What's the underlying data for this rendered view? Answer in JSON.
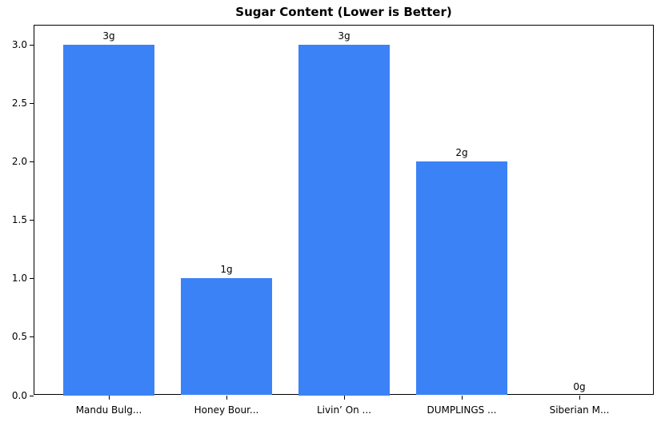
{
  "chart_data": {
    "type": "bar",
    "title": "Sugar Content (Lower is Better)",
    "categories": [
      "Mandu Bulg...",
      "Honey Bour...",
      "Livin’ On ...",
      "DUMPLINGS ...",
      "Siberian M..."
    ],
    "values": [
      3,
      1,
      3,
      2,
      0
    ],
    "bar_labels": [
      "3g",
      "1g",
      "3g",
      "2g",
      "0g"
    ],
    "ytick_values": [
      0.0,
      0.5,
      1.0,
      1.5,
      2.0,
      2.5,
      3.0
    ],
    "ytick_labels": [
      "0.0",
      "0.5",
      "1.0",
      "1.5",
      "2.0",
      "2.5",
      "3.0"
    ],
    "ylim": [
      0,
      3.16
    ],
    "xlabel": "",
    "ylabel": "",
    "grid": false,
    "legend": "none",
    "bar_color": "#3b82f6",
    "axis_color": "#000000",
    "background_color": "#ffffff"
  }
}
